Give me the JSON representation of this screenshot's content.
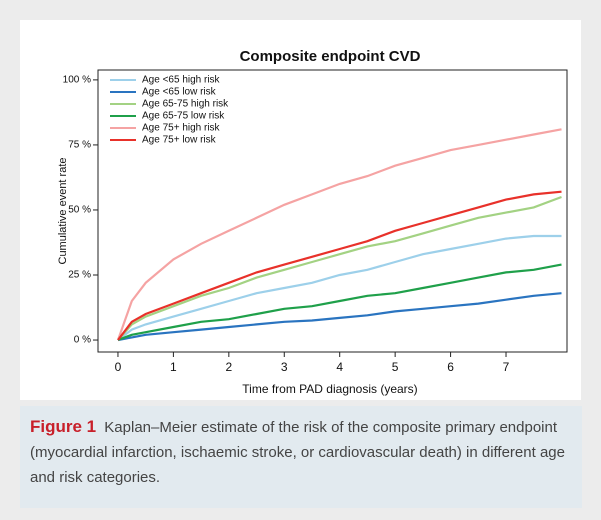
{
  "chart_data": {
    "type": "line",
    "title": "Composite endpoint CVD",
    "x_label": "Time from PAD diagnosis (years)",
    "y_label": "Cumulative event rate",
    "x": [
      0,
      0.25,
      0.5,
      1,
      1.5,
      2,
      2.5,
      3,
      3.5,
      4,
      4.5,
      5,
      5.5,
      6,
      6.5,
      7,
      7.5,
      8
    ],
    "series": [
      {
        "name": "Age <65 high risk",
        "color": "#9dd0ea",
        "values": [
          0,
          4,
          6,
          9,
          12,
          15,
          18,
          20,
          22,
          25,
          27,
          30,
          33,
          35,
          37,
          39,
          40,
          40
        ]
      },
      {
        "name": "Age <65 low risk",
        "color": "#2a74c0",
        "values": [
          0,
          1,
          2,
          3,
          4,
          5,
          6,
          7,
          7.5,
          8.5,
          9.5,
          11,
          12,
          13,
          14,
          15.5,
          17,
          18
        ]
      },
      {
        "name": "Age 65-75 high risk",
        "color": "#a3d283",
        "values": [
          0,
          6,
          9,
          13,
          17,
          20,
          24,
          27,
          30,
          33,
          36,
          38,
          41,
          44,
          47,
          49,
          51,
          55
        ]
      },
      {
        "name": "Age 65-75 low risk",
        "color": "#1fa04a",
        "values": [
          0,
          2,
          3,
          5,
          7,
          8,
          10,
          12,
          13,
          15,
          17,
          18,
          20,
          22,
          24,
          26,
          27,
          29
        ]
      },
      {
        "name": "Age 75+ high risk",
        "color": "#f5a3a3",
        "values": [
          0,
          15,
          22,
          31,
          37,
          42,
          47,
          52,
          56,
          60,
          63,
          67,
          70,
          73,
          75,
          77,
          79,
          81
        ]
      },
      {
        "name": "Age 75+ low risk",
        "color": "#e8312a",
        "values": [
          0,
          7,
          10,
          14,
          18,
          22,
          26,
          29,
          32,
          35,
          38,
          42,
          45,
          48,
          51,
          54,
          56,
          57
        ]
      }
    ],
    "xlim": [
      -0.36,
      8.1
    ],
    "xticks": [
      0,
      1,
      2,
      3,
      4,
      5,
      6,
      7
    ],
    "ylim": [
      -4.6,
      103.8
    ],
    "yticks": [
      {
        "value": 0,
        "label": "0 %"
      },
      {
        "value": 25,
        "label": "25 %"
      },
      {
        "value": 50,
        "label": "50 %"
      },
      {
        "value": 75,
        "label": "75 %"
      },
      {
        "value": 100,
        "label": "100 %"
      }
    ],
    "grid": false,
    "legend": "upper left"
  },
  "caption": {
    "label": "Figure 1",
    "text": "Kaplan–Meier estimate of the risk of the composite primary endpoint (myocardial infarction, ischaemic stroke, or cardiovascular death) in different age and risk categories."
  }
}
